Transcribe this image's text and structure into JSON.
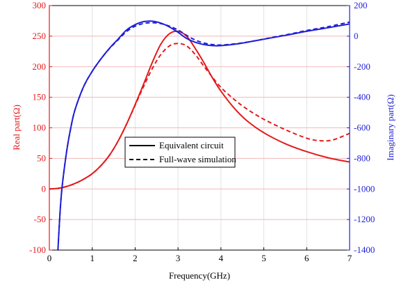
{
  "chart_data": {
    "type": "line",
    "xlabel": "Frequency(GHz)",
    "ylabel_left": "Real part(Ω)",
    "ylabel_right": "Imaginary part(Ω)",
    "xlim": [
      0,
      7
    ],
    "ylim_left": [
      -100,
      300
    ],
    "ylim_right": [
      -1400,
      200
    ],
    "x_ticks": [
      "0",
      "1",
      "2",
      "3",
      "4",
      "5",
      "6",
      "7"
    ],
    "left_ticks": [
      "-100",
      "-50",
      "0",
      "50",
      "100",
      "150",
      "200",
      "250",
      "300"
    ],
    "right_ticks": [
      "-1400",
      "-1200",
      "-1000",
      "-800",
      "-600",
      "-400",
      "-200",
      "0",
      "200"
    ],
    "grid": true,
    "legend": {
      "position": "center",
      "entries": [
        {
          "label": "Equivalent circuit",
          "style": "solid"
        },
        {
          "label": "Full-wave simulation",
          "style": "dashed"
        }
      ]
    },
    "colors": {
      "real": "#e41a1c",
      "imag": "#1f1fd6"
    },
    "series": [
      {
        "axis": "left",
        "style": "solid",
        "color": "#e41a1c",
        "x": [
          0.0,
          0.2,
          0.4,
          0.6,
          0.8,
          1.0,
          1.2,
          1.4,
          1.6,
          1.8,
          2.0,
          2.2,
          2.4,
          2.6,
          2.8,
          3.0,
          3.2,
          3.4,
          3.6,
          3.8,
          4.0,
          4.3,
          4.6,
          5.0,
          5.5,
          6.0,
          6.5,
          7.0
        ],
        "y": [
          0,
          1,
          4,
          9,
          16,
          25,
          38,
          55,
          78,
          106,
          138,
          172,
          207,
          237,
          254,
          258,
          250,
          230,
          207,
          182,
          160,
          133,
          112,
          92,
          74,
          61,
          51,
          44
        ]
      },
      {
        "axis": "left",
        "style": "dashed",
        "color": "#e41a1c",
        "x": [
          0.0,
          0.2,
          0.4,
          0.6,
          0.8,
          1.0,
          1.2,
          1.4,
          1.6,
          1.8,
          2.0,
          2.2,
          2.4,
          2.6,
          2.8,
          3.0,
          3.2,
          3.4,
          3.6,
          3.8,
          4.0,
          4.3,
          4.6,
          5.0,
          5.5,
          6.0,
          6.3,
          6.6,
          7.0
        ],
        "y": [
          0,
          1,
          4,
          9,
          16,
          25,
          38,
          55,
          78,
          106,
          137,
          168,
          197,
          220,
          234,
          238,
          234,
          220,
          201,
          183,
          166,
          147,
          131,
          114,
          97,
          83,
          79,
          80,
          91
        ]
      },
      {
        "axis": "right",
        "style": "solid",
        "color": "#1f1fd6",
        "x": [
          0.2,
          0.25,
          0.3,
          0.4,
          0.5,
          0.6,
          0.8,
          1.0,
          1.2,
          1.4,
          1.6,
          1.8,
          2.0,
          2.2,
          2.4,
          2.6,
          2.8,
          3.0,
          3.2,
          3.4,
          3.6,
          3.8,
          4.0,
          4.4,
          4.8,
          5.2,
          5.6,
          6.0,
          6.5,
          7.0
        ],
        "y": [
          -1400,
          -1150,
          -980,
          -760,
          -600,
          -480,
          -330,
          -230,
          -150,
          -80,
          -20,
          40,
          75,
          95,
          98,
          85,
          60,
          25,
          -15,
          -40,
          -55,
          -62,
          -62,
          -50,
          -30,
          -10,
          10,
          32,
          55,
          80
        ]
      },
      {
        "axis": "right",
        "style": "dashed",
        "color": "#1f1fd6",
        "x": [
          0.2,
          0.25,
          0.3,
          0.4,
          0.5,
          0.6,
          0.8,
          1.0,
          1.2,
          1.4,
          1.6,
          1.8,
          2.0,
          2.2,
          2.4,
          2.6,
          2.8,
          3.0,
          3.2,
          3.4,
          3.6,
          3.8,
          4.0,
          4.4,
          4.8,
          5.2,
          5.6,
          6.0,
          6.5,
          7.0
        ],
        "y": [
          -1400,
          -1150,
          -980,
          -760,
          -600,
          -480,
          -330,
          -230,
          -150,
          -82,
          -25,
          30,
          65,
          83,
          88,
          82,
          65,
          40,
          5,
          -25,
          -45,
          -55,
          -58,
          -48,
          -30,
          -8,
          13,
          37,
          62,
          92
        ]
      }
    ]
  }
}
